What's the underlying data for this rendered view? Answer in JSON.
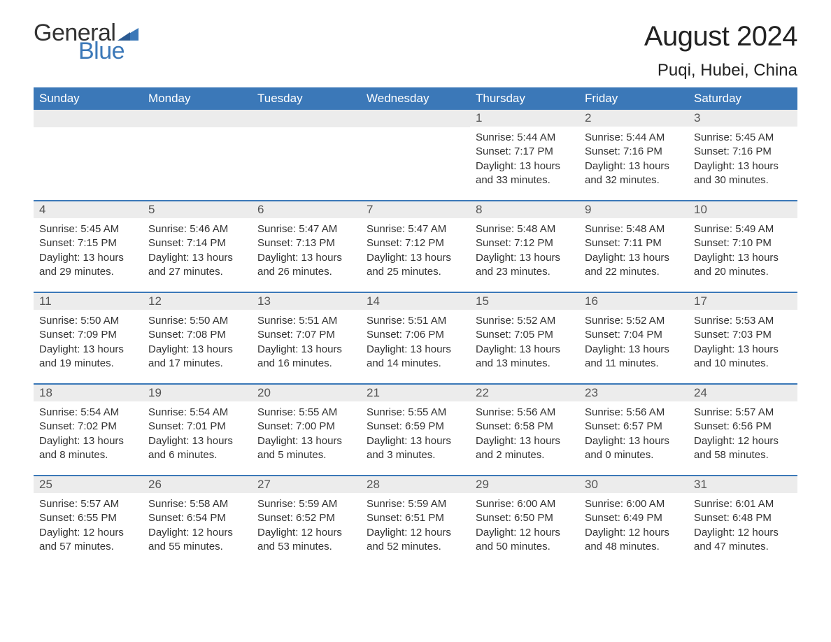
{
  "logo": {
    "general": "General",
    "blue": "Blue",
    "flag_color": "#3b78b8"
  },
  "title": "August 2024",
  "location": "Puqi, Hubei, China",
  "colors": {
    "header_bg": "#3b78b8",
    "header_text": "#ffffff",
    "daynum_bg": "#ececec",
    "daynum_text": "#555555",
    "body_text": "#333333",
    "rule": "#3b78b8",
    "page_bg": "#ffffff"
  },
  "fonts": {
    "title_size": 40,
    "location_size": 24,
    "weekday_size": 17,
    "body_size": 15
  },
  "weekdays": [
    "Sunday",
    "Monday",
    "Tuesday",
    "Wednesday",
    "Thursday",
    "Friday",
    "Saturday"
  ],
  "sun_label": "Sunrise: ",
  "set_label": "Sunset: ",
  "day_label": "Daylight: ",
  "weeks": [
    [
      null,
      null,
      null,
      null,
      {
        "n": "1",
        "sr": "5:44 AM",
        "ss": "7:17 PM",
        "dl": "13 hours and 33 minutes."
      },
      {
        "n": "2",
        "sr": "5:44 AM",
        "ss": "7:16 PM",
        "dl": "13 hours and 32 minutes."
      },
      {
        "n": "3",
        "sr": "5:45 AM",
        "ss": "7:16 PM",
        "dl": "13 hours and 30 minutes."
      }
    ],
    [
      {
        "n": "4",
        "sr": "5:45 AM",
        "ss": "7:15 PM",
        "dl": "13 hours and 29 minutes."
      },
      {
        "n": "5",
        "sr": "5:46 AM",
        "ss": "7:14 PM",
        "dl": "13 hours and 27 minutes."
      },
      {
        "n": "6",
        "sr": "5:47 AM",
        "ss": "7:13 PM",
        "dl": "13 hours and 26 minutes."
      },
      {
        "n": "7",
        "sr": "5:47 AM",
        "ss": "7:12 PM",
        "dl": "13 hours and 25 minutes."
      },
      {
        "n": "8",
        "sr": "5:48 AM",
        "ss": "7:12 PM",
        "dl": "13 hours and 23 minutes."
      },
      {
        "n": "9",
        "sr": "5:48 AM",
        "ss": "7:11 PM",
        "dl": "13 hours and 22 minutes."
      },
      {
        "n": "10",
        "sr": "5:49 AM",
        "ss": "7:10 PM",
        "dl": "13 hours and 20 minutes."
      }
    ],
    [
      {
        "n": "11",
        "sr": "5:50 AM",
        "ss": "7:09 PM",
        "dl": "13 hours and 19 minutes."
      },
      {
        "n": "12",
        "sr": "5:50 AM",
        "ss": "7:08 PM",
        "dl": "13 hours and 17 minutes."
      },
      {
        "n": "13",
        "sr": "5:51 AM",
        "ss": "7:07 PM",
        "dl": "13 hours and 16 minutes."
      },
      {
        "n": "14",
        "sr": "5:51 AM",
        "ss": "7:06 PM",
        "dl": "13 hours and 14 minutes."
      },
      {
        "n": "15",
        "sr": "5:52 AM",
        "ss": "7:05 PM",
        "dl": "13 hours and 13 minutes."
      },
      {
        "n": "16",
        "sr": "5:52 AM",
        "ss": "7:04 PM",
        "dl": "13 hours and 11 minutes."
      },
      {
        "n": "17",
        "sr": "5:53 AM",
        "ss": "7:03 PM",
        "dl": "13 hours and 10 minutes."
      }
    ],
    [
      {
        "n": "18",
        "sr": "5:54 AM",
        "ss": "7:02 PM",
        "dl": "13 hours and 8 minutes."
      },
      {
        "n": "19",
        "sr": "5:54 AM",
        "ss": "7:01 PM",
        "dl": "13 hours and 6 minutes."
      },
      {
        "n": "20",
        "sr": "5:55 AM",
        "ss": "7:00 PM",
        "dl": "13 hours and 5 minutes."
      },
      {
        "n": "21",
        "sr": "5:55 AM",
        "ss": "6:59 PM",
        "dl": "13 hours and 3 minutes."
      },
      {
        "n": "22",
        "sr": "5:56 AM",
        "ss": "6:58 PM",
        "dl": "13 hours and 2 minutes."
      },
      {
        "n": "23",
        "sr": "5:56 AM",
        "ss": "6:57 PM",
        "dl": "13 hours and 0 minutes."
      },
      {
        "n": "24",
        "sr": "5:57 AM",
        "ss": "6:56 PM",
        "dl": "12 hours and 58 minutes."
      }
    ],
    [
      {
        "n": "25",
        "sr": "5:57 AM",
        "ss": "6:55 PM",
        "dl": "12 hours and 57 minutes."
      },
      {
        "n": "26",
        "sr": "5:58 AM",
        "ss": "6:54 PM",
        "dl": "12 hours and 55 minutes."
      },
      {
        "n": "27",
        "sr": "5:59 AM",
        "ss": "6:52 PM",
        "dl": "12 hours and 53 minutes."
      },
      {
        "n": "28",
        "sr": "5:59 AM",
        "ss": "6:51 PM",
        "dl": "12 hours and 52 minutes."
      },
      {
        "n": "29",
        "sr": "6:00 AM",
        "ss": "6:50 PM",
        "dl": "12 hours and 50 minutes."
      },
      {
        "n": "30",
        "sr": "6:00 AM",
        "ss": "6:49 PM",
        "dl": "12 hours and 48 minutes."
      },
      {
        "n": "31",
        "sr": "6:01 AM",
        "ss": "6:48 PM",
        "dl": "12 hours and 47 minutes."
      }
    ]
  ]
}
